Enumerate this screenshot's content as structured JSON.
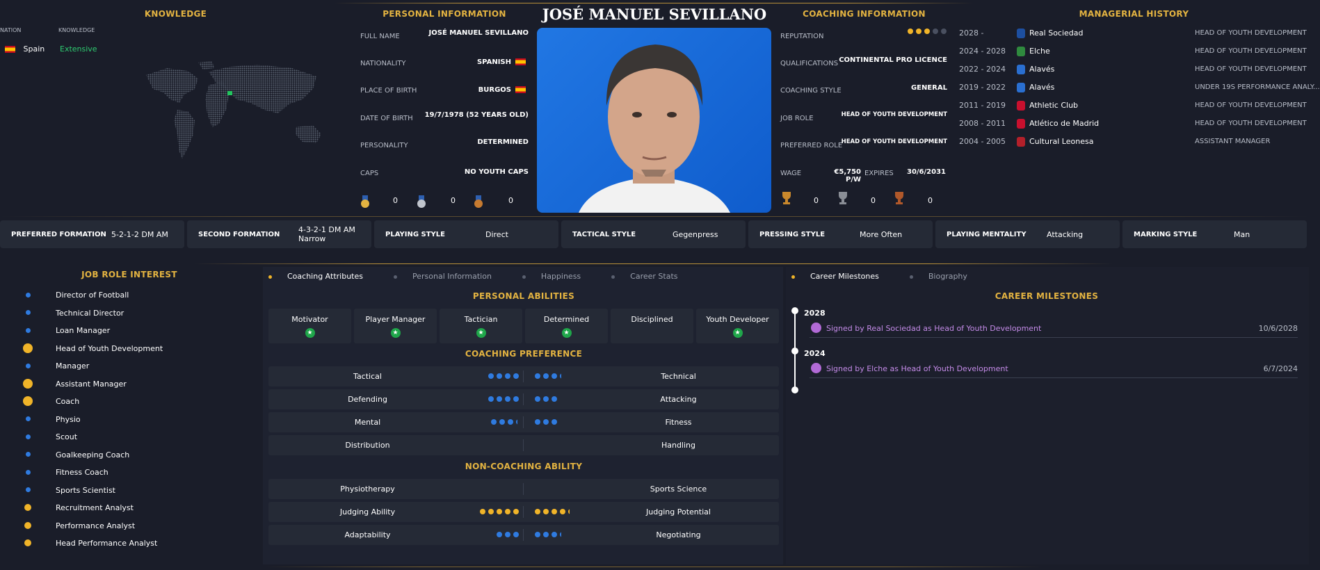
{
  "title": "JOSÉ MANUEL SEVILLANO",
  "knowledge": {
    "heading": "KNOWLEDGE",
    "col_nation": "NATION",
    "col_knowledge": "KNOWLEDGE",
    "nation": "Spain",
    "level": "Extensive"
  },
  "personal": {
    "heading": "PERSONAL INFORMATION",
    "full_name_label": "FULL NAME",
    "full_name": "JOSÉ MANUEL SEVILLANO",
    "nationality_label": "NATIONALITY",
    "nationality": "SPANISH",
    "birthplace_label": "PLACE OF BIRTH",
    "birthplace": "BURGOS",
    "dob_label": "DATE OF BIRTH",
    "dob": "19/7/1978 (52 YEARS OLD)",
    "personality_label": "PERSONALITY",
    "personality": "DETERMINED",
    "caps_label": "CAPS",
    "caps": "NO YOUTH CAPS",
    "medals": [
      "0",
      "0",
      "0"
    ]
  },
  "coaching": {
    "heading": "COACHING INFORMATION",
    "reputation_label": "REPUTATION",
    "reputation_stars": 3,
    "reputation_max": 5,
    "qualifications_label": "QUALIFICATIONS",
    "qualifications": "CONTINENTAL PRO LICENCE",
    "style_label": "COACHING STYLE",
    "style": "GENERAL",
    "job_role_label": "JOB ROLE",
    "job_role": "HEAD OF YOUTH DEVELOPMENT",
    "preferred_role_label": "PREFERRED ROLE",
    "preferred_role": "HEAD OF YOUTH DEVELOPMENT",
    "wage_label": "WAGE",
    "wage": "€5,750 P/W",
    "expires_label": "EXPIRES",
    "expires": "30/6/2031",
    "trophies": [
      "0",
      "0",
      "0"
    ]
  },
  "history": {
    "heading": "MANAGERIAL HISTORY",
    "rows": [
      {
        "years": "2028 -",
        "club": "Real Sociedad",
        "role": "HEAD OF YOUTH DEVELOPMENT",
        "color": "#1d4fa0"
      },
      {
        "years": "2024 - 2028",
        "club": "Elche",
        "role": "HEAD OF YOUTH DEVELOPMENT",
        "color": "#2f8a3e"
      },
      {
        "years": "2022 - 2024",
        "club": "Alavés",
        "role": "HEAD OF YOUTH DEVELOPMENT",
        "color": "#2a6fd0"
      },
      {
        "years": "2019 - 2022",
        "club": "Alavés",
        "role": "UNDER 19S PERFORMANCE ANALY...",
        "color": "#2a6fd0"
      },
      {
        "years": "2011 - 2019",
        "club": "Athletic Club",
        "role": "HEAD OF YOUTH DEVELOPMENT",
        "color": "#c8102e"
      },
      {
        "years": "2008 - 2011",
        "club": "Atlético de Madrid",
        "role": "HEAD OF YOUTH DEVELOPMENT",
        "color": "#c8102e"
      },
      {
        "years": "2004 - 2005",
        "club": "Cultural Leonesa",
        "role": "ASSISTANT MANAGER",
        "color": "#b3202a"
      }
    ]
  },
  "tactics": [
    {
      "label": "PREFERRED FORMATION",
      "value": "5-2-1-2 DM AM"
    },
    {
      "label": "SECOND FORMATION",
      "value": "4-3-2-1 DM AM Narrow"
    },
    {
      "label": "PLAYING STYLE",
      "value": "Direct"
    },
    {
      "label": "TACTICAL STYLE",
      "value": "Gegenpress"
    },
    {
      "label": "PRESSING STYLE",
      "value": "More Often"
    },
    {
      "label": "PLAYING MENTALITY",
      "value": "Attacking"
    },
    {
      "label": "MARKING STYLE",
      "value": "Man"
    }
  ],
  "job_roles": {
    "heading": "JOB ROLE INTEREST",
    "items": [
      {
        "name": "Director of Football",
        "level": "low"
      },
      {
        "name": "Technical Director",
        "level": "low"
      },
      {
        "name": "Loan Manager",
        "level": "low"
      },
      {
        "name": "Head of Youth Development",
        "level": "high"
      },
      {
        "name": "Manager",
        "level": "low"
      },
      {
        "name": "Assistant Manager",
        "level": "high"
      },
      {
        "name": "Coach",
        "level": "high"
      },
      {
        "name": "Physio",
        "level": "low"
      },
      {
        "name": "Scout",
        "level": "low"
      },
      {
        "name": "Goalkeeping Coach",
        "level": "low"
      },
      {
        "name": "Fitness Coach",
        "level": "low"
      },
      {
        "name": "Sports Scientist",
        "level": "low"
      },
      {
        "name": "Recruitment Analyst",
        "level": "mid"
      },
      {
        "name": "Performance Analyst",
        "level": "mid"
      },
      {
        "name": "Head Performance Analyst",
        "level": "mid"
      }
    ]
  },
  "tabs": [
    "Coaching Attributes",
    "Personal Information",
    "Happiness",
    "Career Stats"
  ],
  "abilities": {
    "heading": "PERSONAL ABILITIES",
    "items": [
      {
        "name": "Motivator",
        "star": true
      },
      {
        "name": "Player Manager",
        "star": true
      },
      {
        "name": "Tactician",
        "star": true
      },
      {
        "name": "Determined",
        "star": true
      },
      {
        "name": "Disciplined",
        "star": false
      },
      {
        "name": "Youth Developer",
        "star": true
      }
    ]
  },
  "coaching_pref": {
    "heading": "COACHING PREFERENCE",
    "rows": [
      {
        "left": "Tactical",
        "right": "Technical",
        "ld": 4,
        "rd": 3.5,
        "color": "#2f7be0"
      },
      {
        "left": "Defending",
        "right": "Attacking",
        "ld": 4,
        "rd": 3,
        "color": "#2f7be0"
      },
      {
        "left": "Mental",
        "right": "Fitness",
        "ld": 3.5,
        "rd": 3,
        "color": "#2f7be0"
      },
      {
        "left": "Distribution",
        "right": "Handling",
        "ld": 0,
        "rd": 0,
        "color": "#2f7be0"
      }
    ]
  },
  "non_coaching": {
    "heading": "NON-COACHING ABILITY",
    "rows": [
      {
        "left": "Physiotherapy",
        "right": "Sports Science",
        "ld": 0,
        "rd": 0,
        "color": "#2f7be0"
      },
      {
        "left": "Judging Ability",
        "right": "Judging Potential",
        "ld": 5,
        "rd": 4.5,
        "color": "#f0b429"
      },
      {
        "left": "Adaptability",
        "right": "Negotiating",
        "ld": 3,
        "rd": 3.5,
        "color": "#2f7be0"
      }
    ]
  },
  "right_tabs": [
    "Career Milestones",
    "Biography"
  ],
  "milestones": {
    "heading": "CAREER MILESTONES",
    "items": [
      {
        "year": "2028",
        "text": "Signed by Real Sociedad as Head of Youth Development",
        "date": "10/6/2028"
      },
      {
        "year": "2024",
        "text": "Signed by Elche as Head of Youth Development",
        "date": "6/7/2024"
      }
    ]
  }
}
